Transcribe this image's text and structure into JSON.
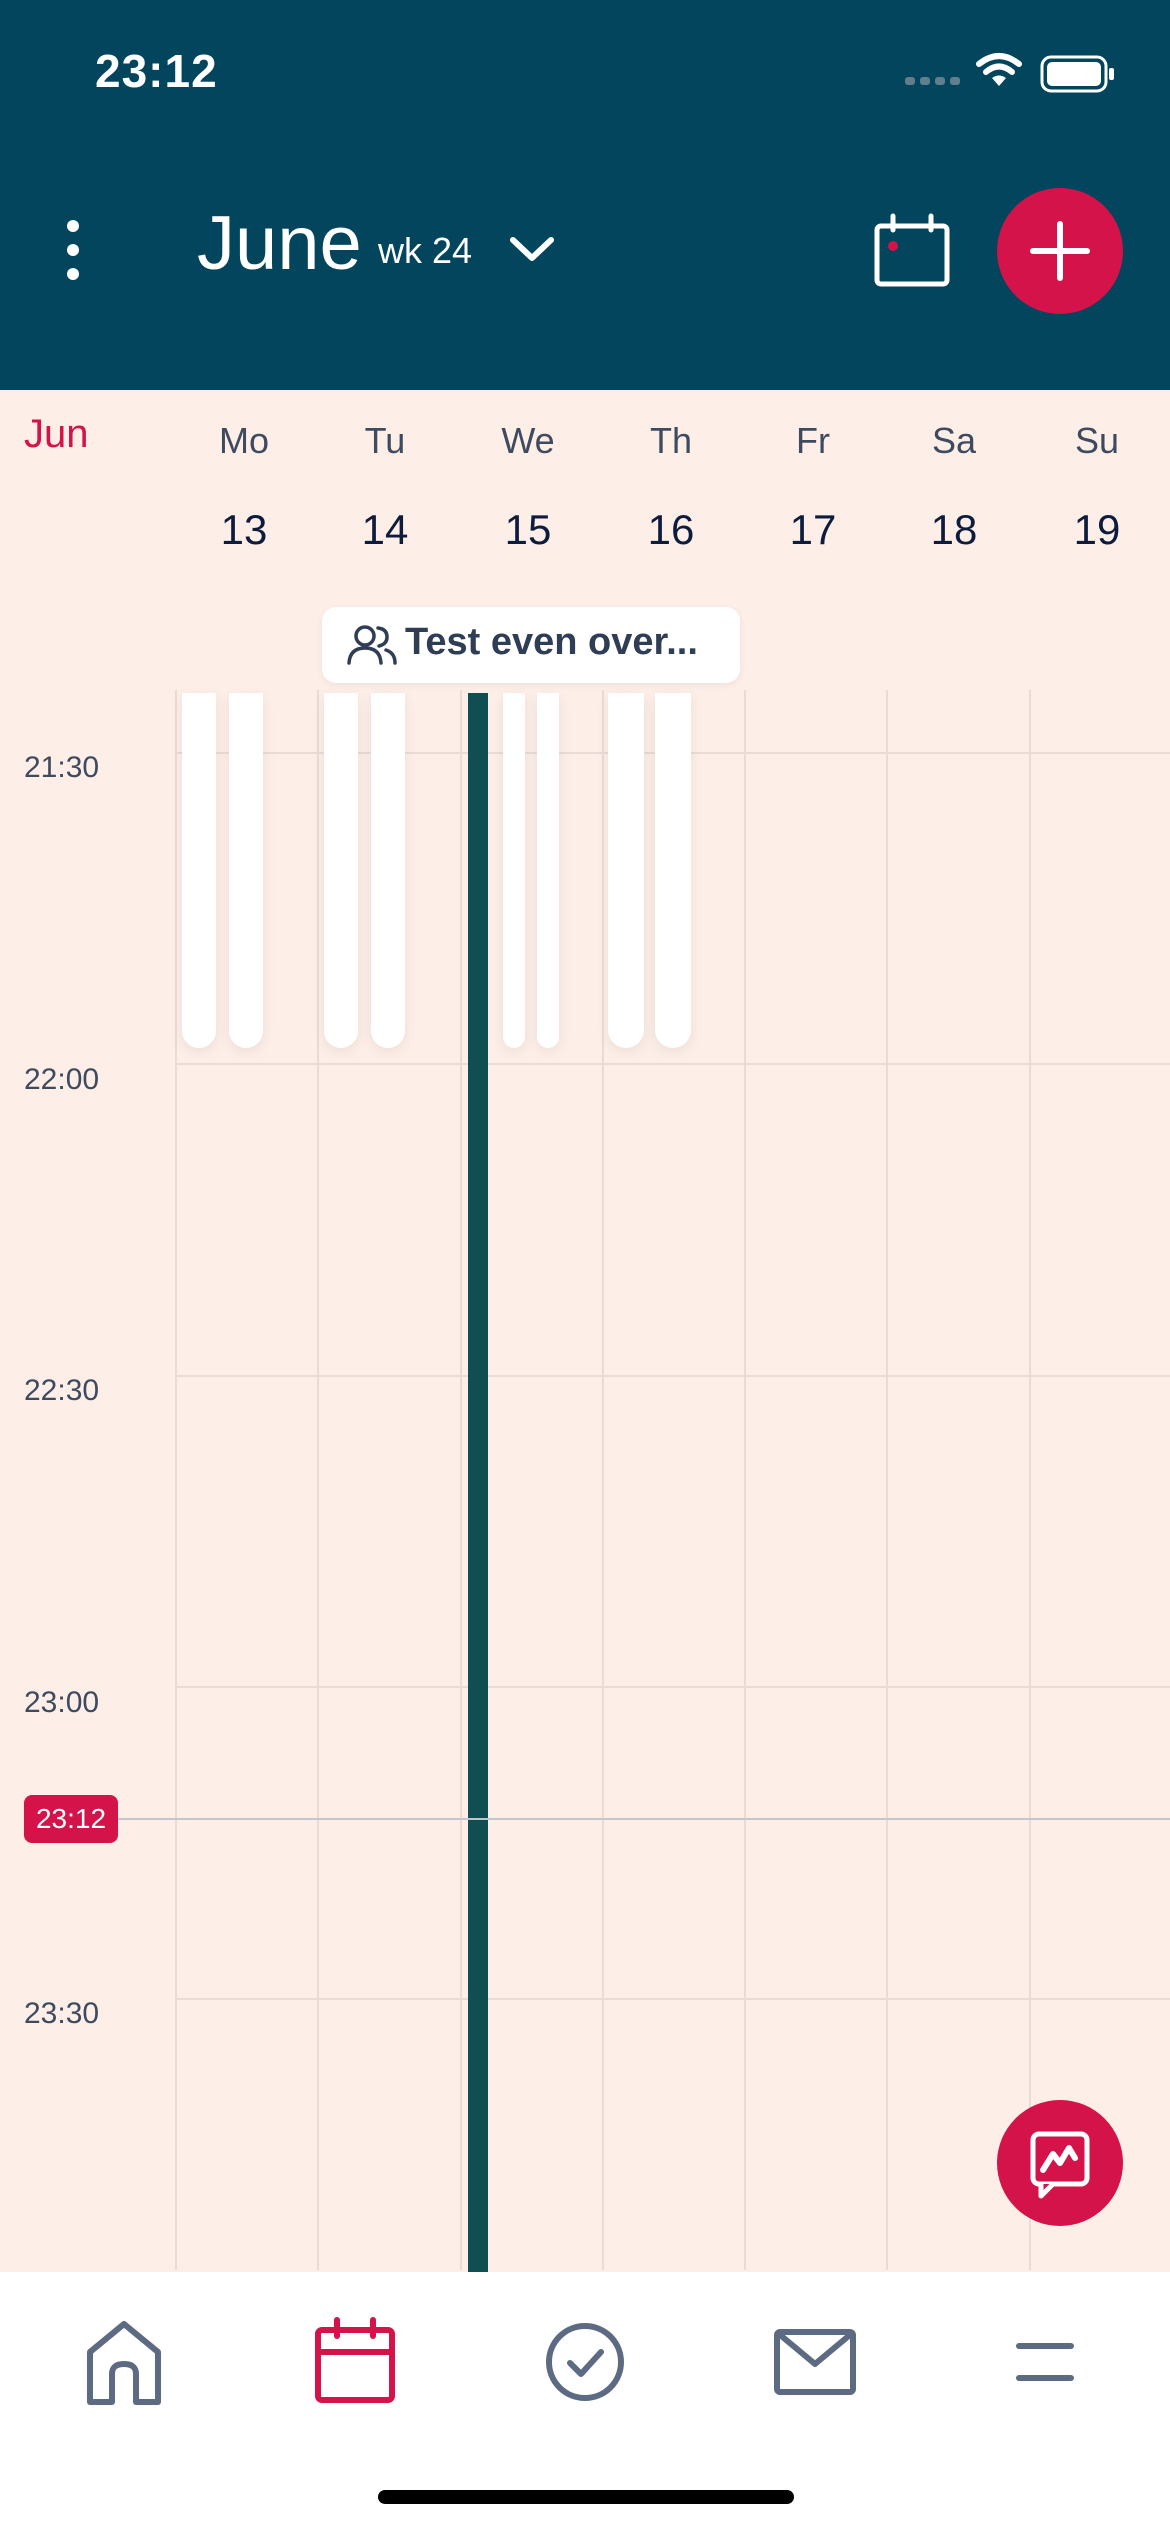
{
  "status_bar": {
    "time": "23:12"
  },
  "header": {
    "month": "June",
    "week": "wk 24"
  },
  "calendar": {
    "month_short": "Jun",
    "days": [
      {
        "name": "Mo",
        "num": "13"
      },
      {
        "name": "Tu",
        "num": "14"
      },
      {
        "name": "We",
        "num": "15"
      },
      {
        "name": "Th",
        "num": "16"
      },
      {
        "name": "Fr",
        "num": "17"
      },
      {
        "name": "Sa",
        "num": "18"
      },
      {
        "name": "Su",
        "num": "19"
      }
    ],
    "times": [
      "21:30",
      "22:00",
      "22:30",
      "23:00",
      "23:30"
    ],
    "now": "23:12"
  },
  "event": {
    "title": "Test even over..."
  },
  "colors": {
    "header": "#02455c",
    "accent": "#d3134a",
    "background": "#fdeee8",
    "today_bar": "#0f4f52"
  },
  "nav": [
    "home-icon",
    "calendar-icon",
    "check-circle-icon",
    "mail-icon",
    "menu-icon"
  ]
}
